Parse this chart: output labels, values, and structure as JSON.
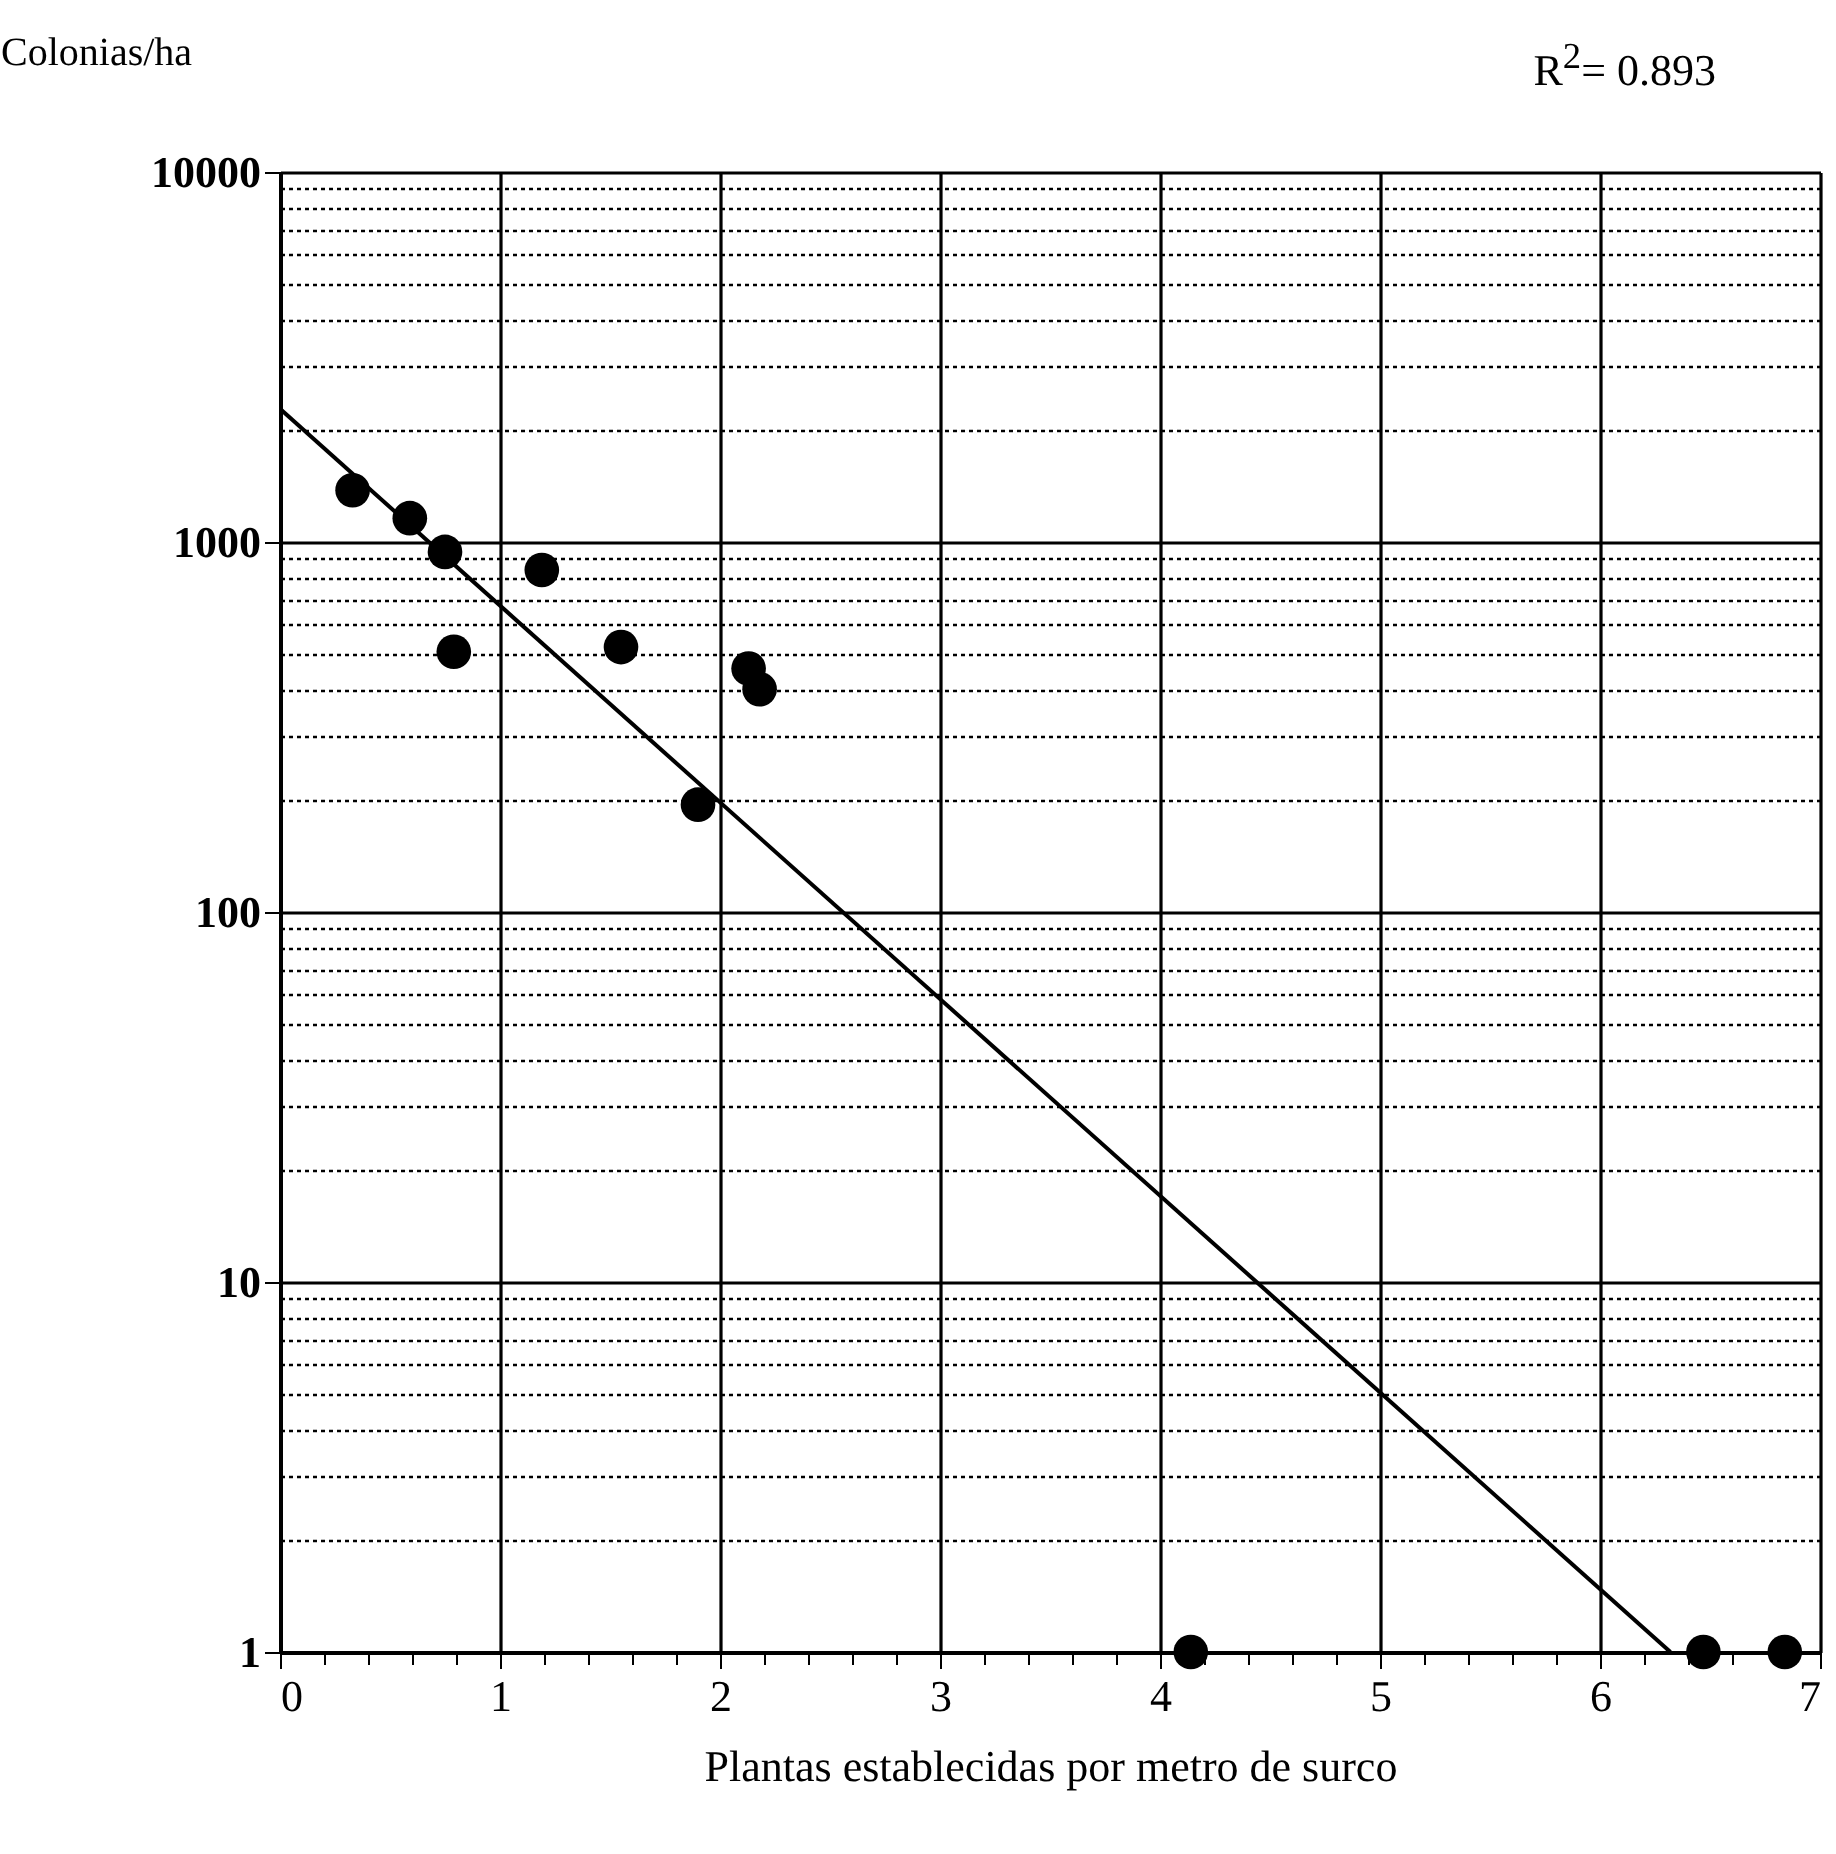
{
  "chart_data": {
    "type": "scatter",
    "xlabel": "Plantas establecidas por metro de surco",
    "ylabel": "Colonias/ha",
    "annotations": [
      "R$^{2}$= 0.893"
    ],
    "log": true,
    "grid": true,
    "marker": "circle",
    "xlim": [
      0,
      7
    ],
    "ylim": [
      1,
      10000
    ],
    "xticks": [
      0,
      {
        "value": 0.2,
        "label": null
      },
      {
        "value": 0.4,
        "label": null
      },
      {
        "value": 0.6,
        "label": null
      },
      {
        "value": 0.8,
        "label": null
      },
      1,
      {
        "value": 1.2,
        "label": null
      },
      {
        "value": 1.4,
        "label": null
      },
      {
        "value": 1.6,
        "label": null
      },
      {
        "value": 1.8,
        "label": null
      },
      2,
      {
        "value": 2.2,
        "label": null
      },
      {
        "value": 2.4,
        "label": null
      },
      {
        "value": 2.6,
        "label": null
      },
      {
        "value": 2.8,
        "label": null
      },
      3,
      {
        "value": 3.2,
        "label": null
      },
      {
        "value": 3.4,
        "label": null
      },
      {
        "value": 3.6,
        "label": null
      },
      {
        "value": 3.8,
        "label": null
      },
      4,
      {
        "value": 4.2,
        "label": null
      },
      {
        "value": 4.4,
        "label": null
      },
      {
        "value": 4.6,
        "label": null
      },
      {
        "value": 4.8,
        "label": null
      },
      5,
      {
        "value": 5.2,
        "label": null
      },
      {
        "value": 5.4,
        "label": null
      },
      {
        "value": 5.6,
        "label": null
      },
      {
        "value": 5.8,
        "label": null
      },
      6,
      {
        "value": 6.2,
        "label": null
      },
      {
        "value": 6.4,
        "label": null
      },
      {
        "value": 6.6,
        "label": null
      },
      {
        "value": 6.8,
        "label": null
      },
      7
    ],
    "yticks": [
      1,
      {
        "value": 2,
        "label": null
      },
      {
        "value": 3,
        "label": null
      },
      {
        "value": 4,
        "label": null
      },
      {
        "value": 5,
        "label": null
      },
      {
        "value": 6,
        "label": null
      },
      {
        "value": 7,
        "label": null
      },
      {
        "value": 8,
        "label": null
      },
      {
        "value": 9,
        "label": null
      },
      10,
      {
        "value": 20,
        "label": null
      },
      {
        "value": 30,
        "label": null
      },
      {
        "value": 40,
        "label": null
      },
      {
        "value": 50,
        "label": null
      },
      {
        "value": 60,
        "label": null
      },
      {
        "value": 70,
        "label": null
      },
      {
        "value": 80,
        "label": null
      },
      {
        "value": 90,
        "label": null
      },
      100,
      {
        "value": 200,
        "label": null
      },
      {
        "value": 300,
        "label": null
      },
      {
        "value": 400,
        "label": null
      },
      {
        "value": 500,
        "label": null
      },
      {
        "value": 600,
        "label": null
      },
      {
        "value": 700,
        "label": null
      },
      {
        "value": 800,
        "label": null
      },
      {
        "value": 900,
        "label": null
      },
      1000,
      {
        "value": 2000,
        "label": null
      },
      {
        "value": 3000,
        "label": null
      },
      {
        "value": 4000,
        "label": null
      },
      {
        "value": 5000,
        "label": null
      },
      {
        "value": 6000,
        "label": null
      },
      {
        "value": 7000,
        "label": null
      },
      {
        "value": 8000,
        "label": null
      },
      {
        "value": 9000,
        "label": null
      },
      10000
    ],
    "series": [
      {
        "type": "scatter",
        "color": "#000000",
        "x": [
          0.33,
          0.59,
          0.75,
          0.79,
          1.19,
          1.55,
          1.9,
          2.13,
          2.18,
          4.14,
          6.47,
          6.84
        ],
        "values": [
          1380,
          1160,
          940,
          505,
          840,
          520,
          195,
          455,
          400,
          1,
          1,
          1
        ]
      },
      {
        "type": "line",
        "color": "#000000",
        "marker": "none",
        "x": [
          0,
          6.32
        ],
        "values": [
          2290,
          1
        ]
      }
    ]
  }
}
